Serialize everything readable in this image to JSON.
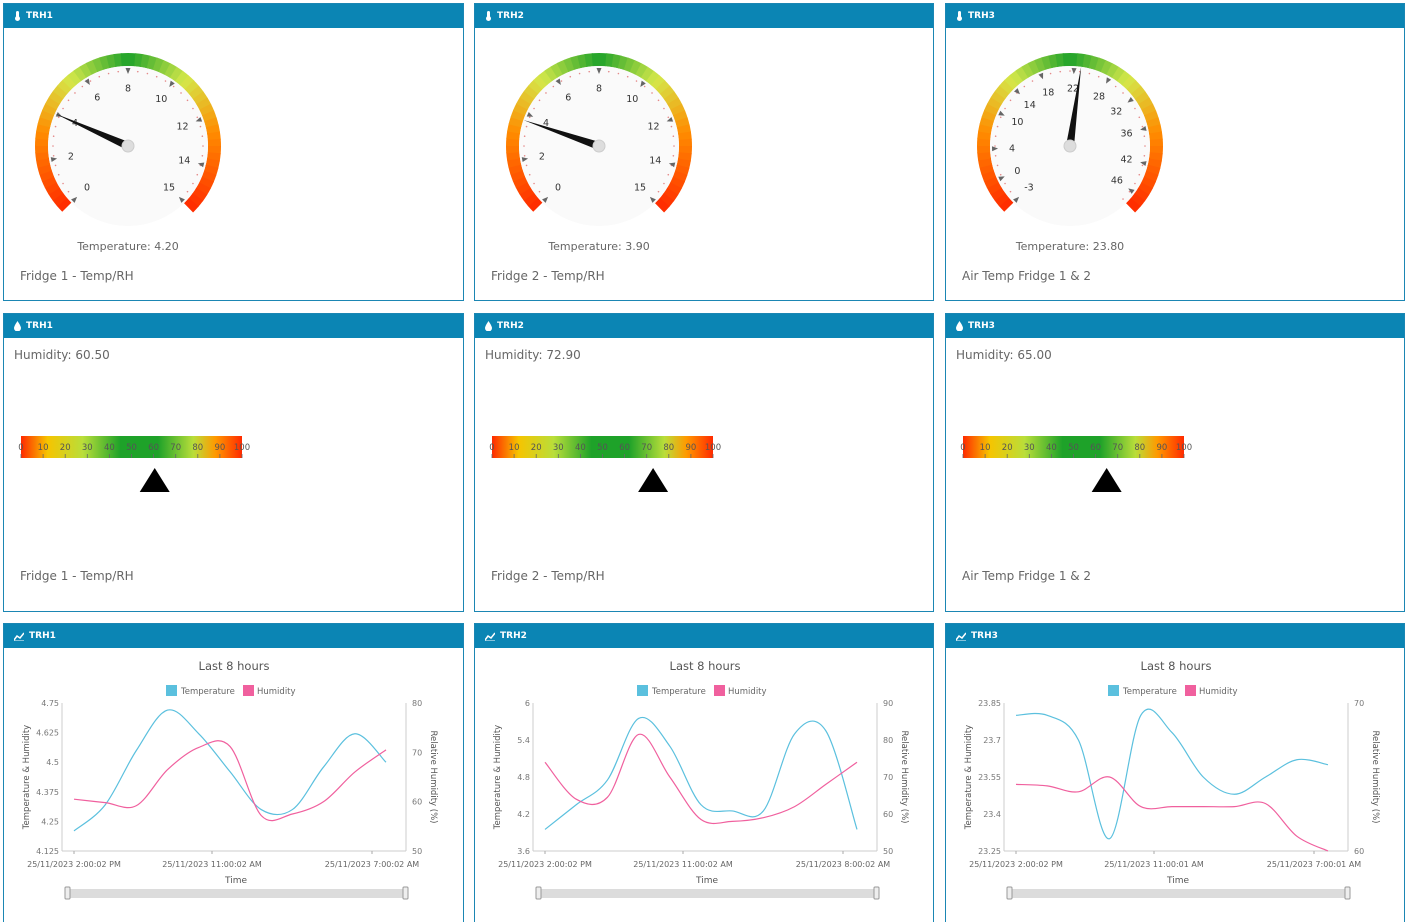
{
  "colors": {
    "header": "#0b85b4",
    "border": "#1b86b3",
    "temp_series": "#5bc0de",
    "hum_series": "#f0609e"
  },
  "gauges": [
    {
      "tag": "TRH1",
      "label_prefix": "Temperature:",
      "value_text": "4.20",
      "value": 4.2,
      "ticks": [
        {
          "t": "0",
          "a": -135
        },
        {
          "t": "2",
          "a": -100
        },
        {
          "t": "4",
          "a": -66
        },
        {
          "t": "6",
          "a": -32
        },
        {
          "t": "8",
          "a": 0
        },
        {
          "t": "10",
          "a": 35
        },
        {
          "t": "12",
          "a": 70
        },
        {
          "t": "14",
          "a": 104
        },
        {
          "t": "15",
          "a": 135
        }
      ],
      "needle_angle": -66,
      "footer": "Fridge 1 - Temp/RH"
    },
    {
      "tag": "TRH2",
      "label_prefix": "Temperature:",
      "value_text": "3.90",
      "value": 3.9,
      "ticks": [
        {
          "t": "0",
          "a": -135
        },
        {
          "t": "2",
          "a": -100
        },
        {
          "t": "4",
          "a": -66
        },
        {
          "t": "6",
          "a": -32
        },
        {
          "t": "8",
          "a": 0
        },
        {
          "t": "10",
          "a": 35
        },
        {
          "t": "12",
          "a": 70
        },
        {
          "t": "14",
          "a": 104
        },
        {
          "t": "15",
          "a": 135
        }
      ],
      "needle_angle": -71,
      "footer": "Fridge 2 - Temp/RH"
    },
    {
      "tag": "TRH3",
      "label_prefix": "Temperature:",
      "value_text": "23.80",
      "value": 23.8,
      "ticks": [
        {
          "t": "-3",
          "a": -135
        },
        {
          "t": "0",
          "a": -115
        },
        {
          "t": "4",
          "a": -92
        },
        {
          "t": "10",
          "a": -65
        },
        {
          "t": "14",
          "a": -44
        },
        {
          "t": "18",
          "a": -22
        },
        {
          "t": "22",
          "a": 3
        },
        {
          "t": "28",
          "a": 30
        },
        {
          "t": "32",
          "a": 53
        },
        {
          "t": "36",
          "a": 77
        },
        {
          "t": "42",
          "a": 103
        },
        {
          "t": "46",
          "a": 126
        }
      ],
      "needle_angle": 8,
      "footer": "Air Temp Fridge 1 & 2"
    }
  ],
  "humidity": [
    {
      "tag": "TRH1",
      "label": "Humidity: 60.50",
      "value": 60.5,
      "footer": "Fridge 1 - Temp/RH"
    },
    {
      "tag": "TRH2",
      "label": "Humidity: 72.90",
      "value": 72.9,
      "footer": "Fridge 2 - Temp/RH"
    },
    {
      "tag": "TRH3",
      "label": "Humidity: 65.00",
      "value": 65.0,
      "footer": "Air Temp Fridge 1 & 2"
    }
  ],
  "humidity_scale": [
    "0",
    "10",
    "20",
    "30",
    "40",
    "50",
    "60",
    "70",
    "80",
    "90",
    "100"
  ],
  "chart_data": [
    {
      "type": "line",
      "tag": "TRH1",
      "title": "Last 8 hours",
      "xlabel": "Time",
      "ylabel": "Temperature & Humidity",
      "y2label": "Relative Humidity (%)",
      "ylim": [
        4.125,
        4.75
      ],
      "y2lim": [
        50,
        80
      ],
      "yticks": [
        "4.125",
        "4.25",
        "4.375",
        "4.5",
        "4.625",
        "4.75"
      ],
      "y2ticks": [
        "50",
        "60",
        "70",
        "80"
      ],
      "xticks": [
        "25/11/2023 2:00:02 PM",
        "25/11/2023 11:00:02 AM",
        "25/11/2023 7:00:02 AM"
      ],
      "x": [
        0,
        0.1,
        0.2,
        0.3,
        0.4,
        0.5,
        0.6,
        0.7,
        0.8,
        0.9,
        1.0
      ],
      "series": [
        {
          "name": "Temperature",
          "axis": "left",
          "values": [
            4.21,
            4.32,
            4.55,
            4.72,
            4.62,
            4.46,
            4.3,
            4.3,
            4.48,
            4.62,
            4.5
          ]
        },
        {
          "name": "Humidity",
          "axis": "right",
          "values": [
            60.5,
            59.8,
            59.2,
            66.5,
            71.0,
            71.2,
            57.2,
            57.5,
            60.0,
            66.0,
            70.5
          ]
        }
      ]
    },
    {
      "type": "line",
      "tag": "TRH2",
      "title": "Last 8 hours",
      "xlabel": "Time",
      "ylabel": "Temperature & Humidity",
      "y2label": "Relative Humidity (%)",
      "ylim": [
        3.6,
        6
      ],
      "y2lim": [
        50,
        90
      ],
      "yticks": [
        "3.6",
        "4.2",
        "4.8",
        "5.4",
        "6"
      ],
      "y2ticks": [
        "50",
        "60",
        "70",
        "80",
        "90"
      ],
      "xticks": [
        "25/11/2023 2:00:02 PM",
        "25/11/2023 11:00:02 AM",
        "25/11/2023 8:00:02 AM"
      ],
      "x": [
        0,
        0.1,
        0.2,
        0.3,
        0.4,
        0.5,
        0.6,
        0.7,
        0.8,
        0.9,
        1.0
      ],
      "series": [
        {
          "name": "Temperature",
          "axis": "left",
          "values": [
            3.95,
            4.35,
            4.75,
            5.75,
            5.3,
            4.35,
            4.25,
            4.25,
            5.5,
            5.55,
            3.95
          ]
        },
        {
          "name": "Humidity",
          "axis": "right",
          "values": [
            74.0,
            64.0,
            64.5,
            81.5,
            70.0,
            58.5,
            58.0,
            59.0,
            62.0,
            68.0,
            74.0
          ]
        }
      ]
    },
    {
      "type": "line",
      "tag": "TRH3",
      "title": "Last 8 hours",
      "xlabel": "Time",
      "ylabel": "Temperature & Humidity",
      "y2label": "Relative Humidity (%)",
      "ylim": [
        23.25,
        23.85
      ],
      "y2lim": [
        60,
        70
      ],
      "yticks": [
        "23.25",
        "23.4",
        "23.55",
        "23.7",
        "23.85"
      ],
      "y2ticks": [
        "60",
        "70"
      ],
      "xticks": [
        "25/11/2023 2:00:02 PM",
        "25/11/2023 11:00:01 AM",
        "25/11/2023 7:00:01 AM"
      ],
      "x": [
        0,
        0.1,
        0.2,
        0.3,
        0.4,
        0.5,
        0.6,
        0.7,
        0.8,
        0.9,
        1.0
      ],
      "series": [
        {
          "name": "Temperature",
          "axis": "left",
          "values": [
            23.8,
            23.8,
            23.7,
            23.3,
            23.8,
            23.73,
            23.55,
            23.48,
            23.55,
            23.62,
            23.6
          ]
        },
        {
          "name": "Humidity",
          "axis": "right",
          "values": [
            64.5,
            64.4,
            64.0,
            65.0,
            63.0,
            63.0,
            63.0,
            63.0,
            63.2,
            61.0,
            60.0
          ]
        }
      ]
    }
  ],
  "legend": {
    "temperature": "Temperature",
    "humidity": "Humidity"
  }
}
